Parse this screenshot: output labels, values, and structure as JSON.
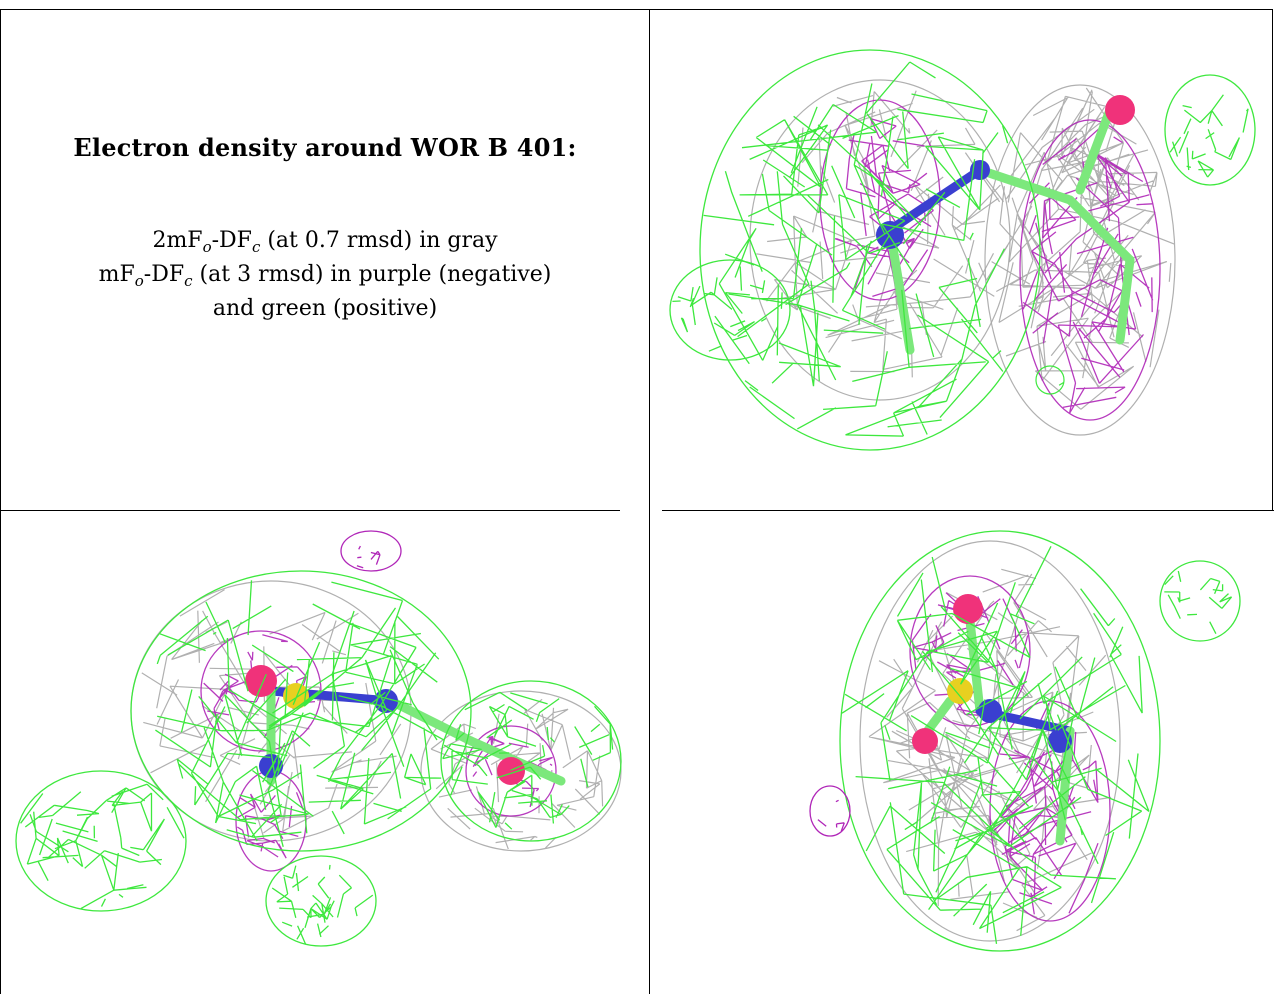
{
  "caption": {
    "title": "Electron density around WOR B 401:",
    "line1": {
      "prefix": "2mF",
      "sub1": "o",
      "mid": "-DF",
      "sub2": "c",
      "suffix": " (at 0.7 rmsd) in gray"
    },
    "line2": {
      "prefix": "mF",
      "sub1": "o",
      "mid": "-DF",
      "sub2": "c",
      "suffix": " (at 3 rmsd) in purple (negative)"
    },
    "line3": "and green (positive)"
  },
  "colors": {
    "positive_mesh": "#3ee83e",
    "negative_mesh": "#b026b8",
    "map_2fofc": "#a8a8a8",
    "oxygen": "#f0327a",
    "nitrogen": "#3a3fd0",
    "sulfur": "#e8d020",
    "carbon_stick": "#7ce87c",
    "border": "#000000"
  },
  "panels": [
    {
      "id": "view-top-right",
      "icon": "electron-density-mesh"
    },
    {
      "id": "view-bottom-left",
      "icon": "electron-density-mesh"
    },
    {
      "id": "view-bottom-right",
      "icon": "electron-density-mesh"
    }
  ]
}
